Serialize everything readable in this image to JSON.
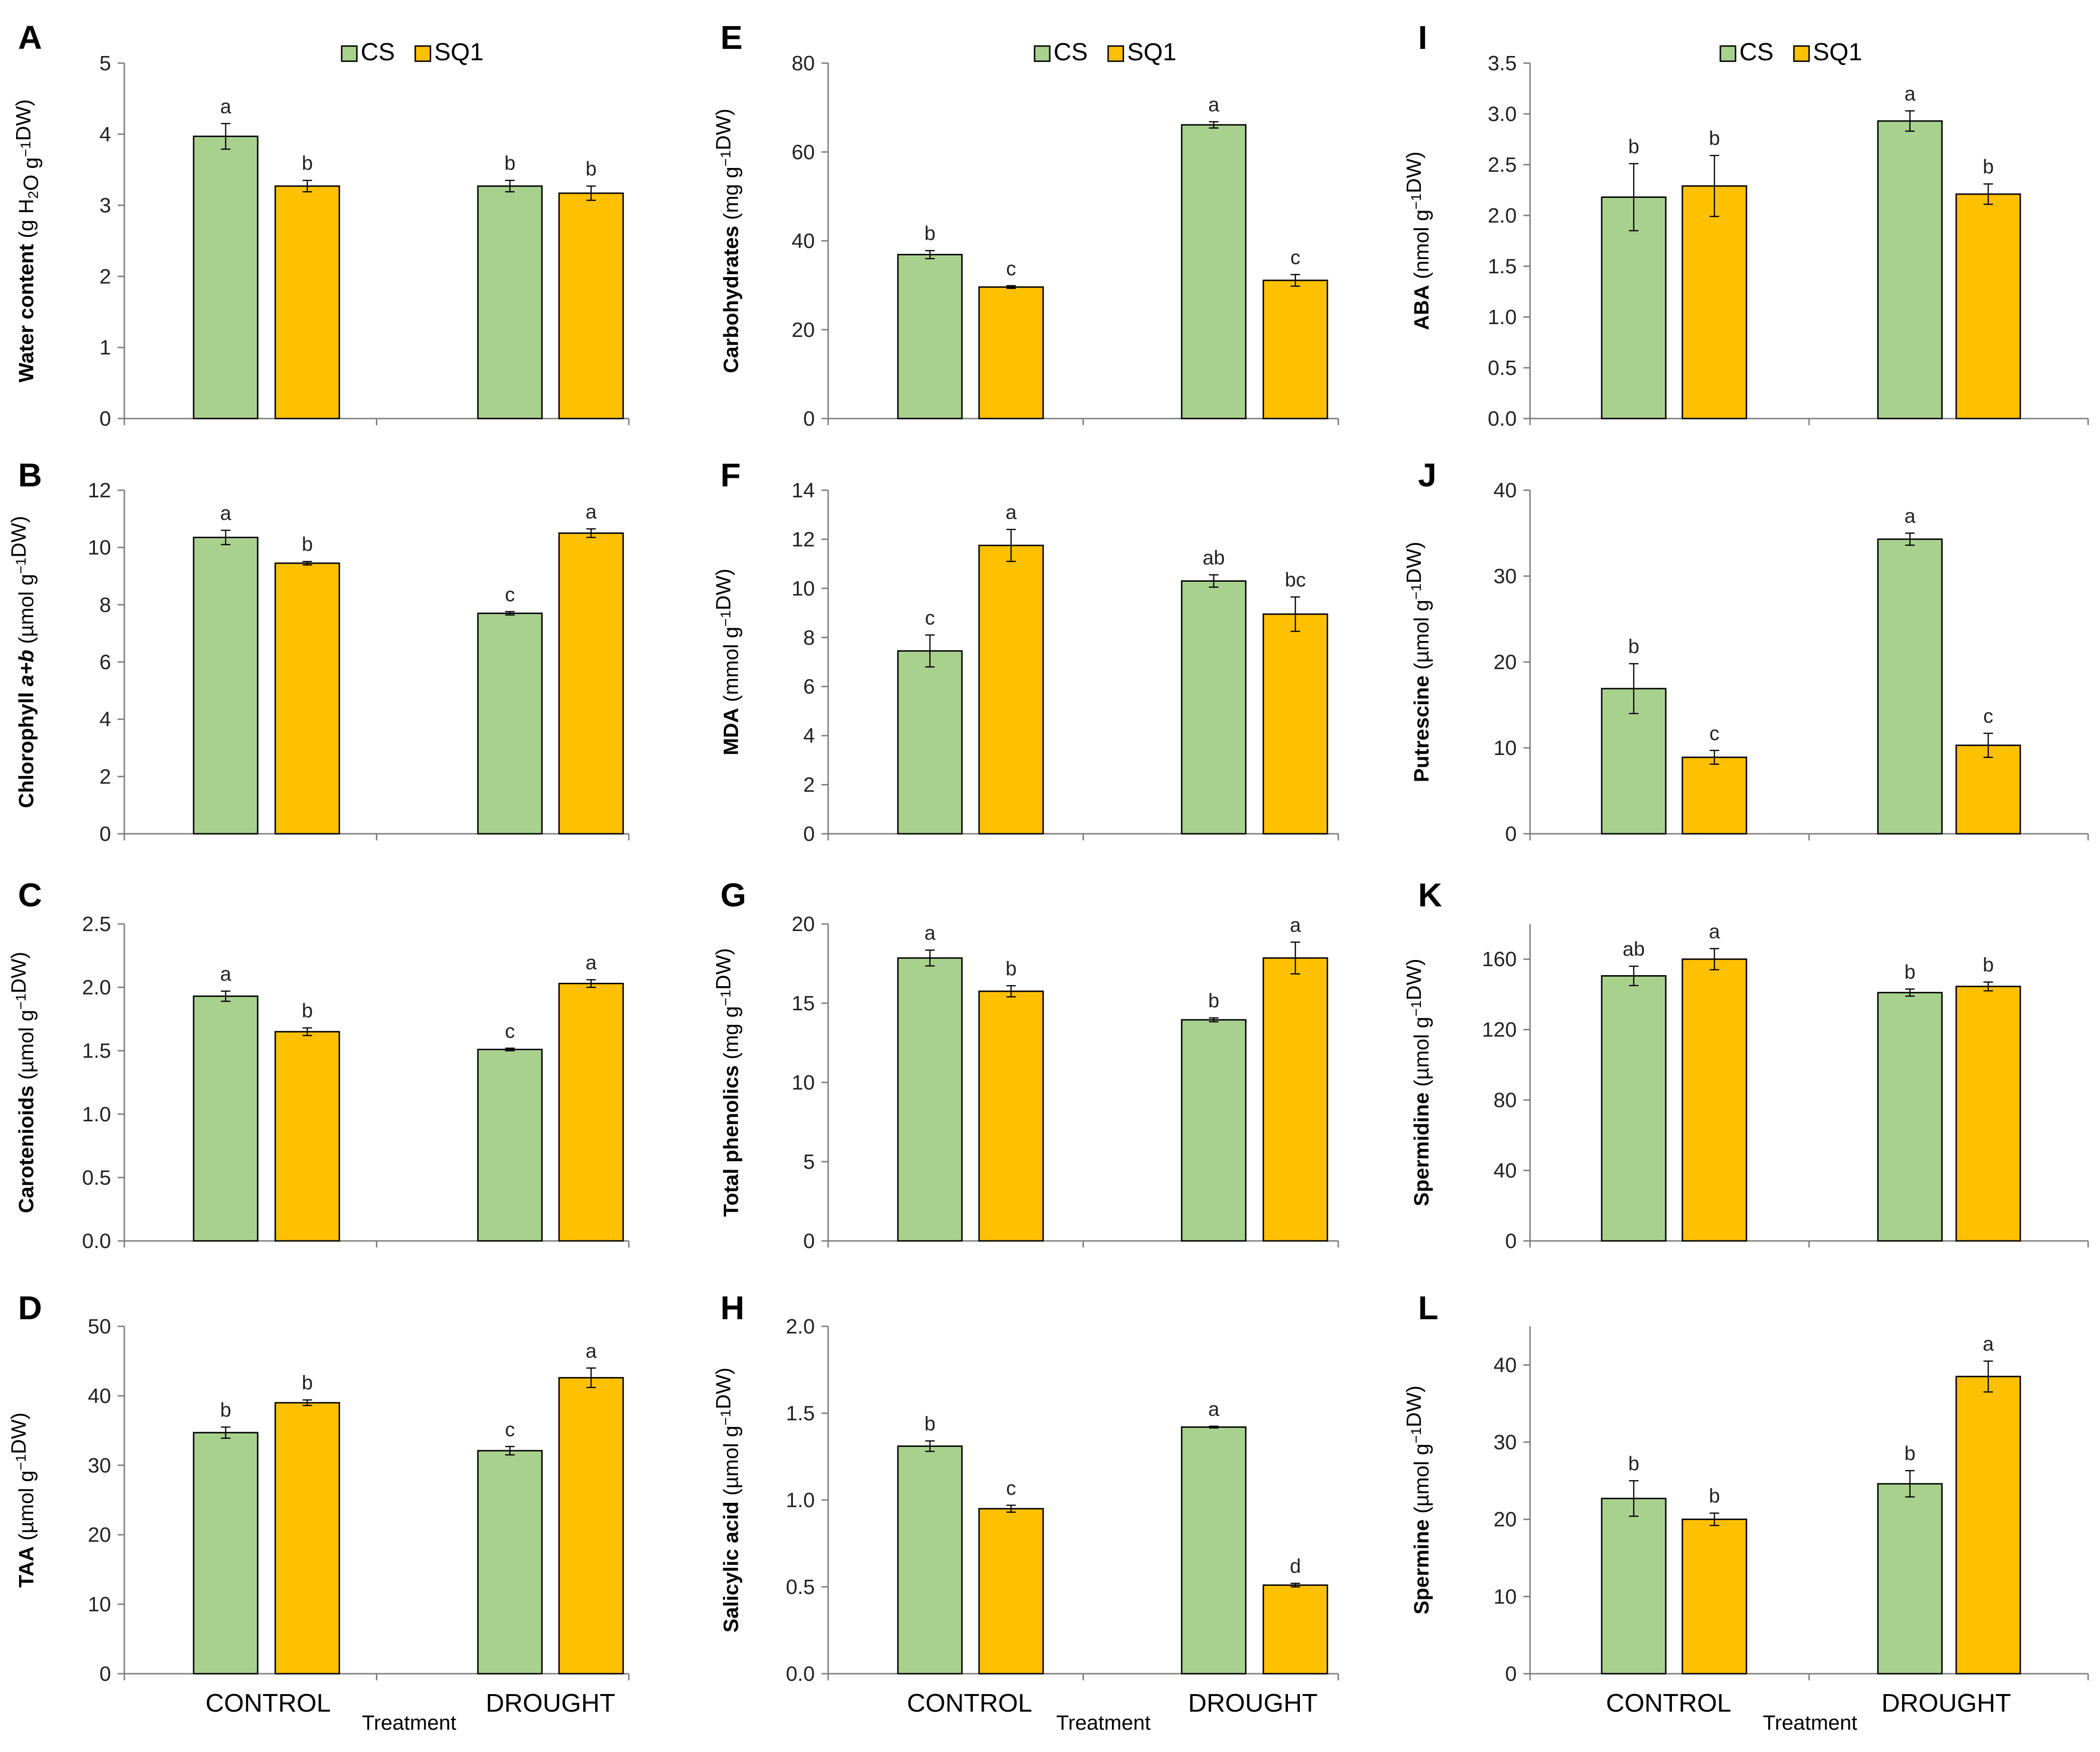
{
  "colors": {
    "CS": "#a9d18e",
    "SQ1": "#ffc000",
    "axis": "#7f7f7f",
    "outline": "#000000"
  },
  "legend": {
    "series": [
      "CS",
      "SQ1"
    ]
  },
  "chart_data": [
    {
      "type": "bar",
      "panel": "A",
      "categories": [
        "CONTROL",
        "DROUGHT"
      ],
      "ylabel_parts": [
        {
          "t": "Water content",
          "s": "b"
        },
        {
          "t": " (g H"
        },
        {
          "t": "2",
          "s": "sub"
        },
        {
          "t": "O g"
        },
        {
          "t": "−1",
          "s": "sup"
        },
        {
          "t": "DW)"
        }
      ],
      "ylim": [
        0,
        5
      ],
      "yticks": [
        "0",
        "1",
        "2",
        "3",
        "4",
        "5"
      ],
      "show_legend": true,
      "series": [
        {
          "name": "CS",
          "values": [
            3.97,
            3.27
          ],
          "errors": [
            0.18,
            0.08
          ],
          "letters": [
            "a",
            "b"
          ]
        },
        {
          "name": "SQ1",
          "values": [
            3.27,
            3.17
          ],
          "errors": [
            0.08,
            0.1
          ],
          "letters": [
            "b",
            "b"
          ]
        }
      ]
    },
    {
      "type": "bar",
      "panel": "B",
      "categories": [
        "CONTROL",
        "DROUGHT"
      ],
      "ylabel_parts": [
        {
          "t": "Chlorophyll ",
          "s": "b"
        },
        {
          "t": "a+b",
          "s": "bi"
        },
        {
          "t": "  (µmol g"
        },
        {
          "t": "−1",
          "s": "sup"
        },
        {
          "t": "DW)"
        }
      ],
      "ylim": [
        0,
        12
      ],
      "yticks": [
        "0",
        "2",
        "4",
        "6",
        "8",
        "10",
        "12"
      ],
      "series": [
        {
          "name": "CS",
          "values": [
            10.35,
            7.7
          ],
          "errors": [
            0.25,
            0.06
          ],
          "letters": [
            "a",
            "c"
          ]
        },
        {
          "name": "SQ1",
          "values": [
            9.45,
            10.5
          ],
          "errors": [
            0.06,
            0.15
          ],
          "letters": [
            "b",
            "a"
          ]
        }
      ]
    },
    {
      "type": "bar",
      "panel": "C",
      "categories": [
        "CONTROL",
        "DROUGHT"
      ],
      "ylabel_parts": [
        {
          "t": "Carotenioids",
          "s": "b"
        },
        {
          "t": " (µmol g"
        },
        {
          "t": "−1",
          "s": "sup"
        },
        {
          "t": "DW)"
        }
      ],
      "ylim": [
        0,
        2.5
      ],
      "yticks": [
        "0.0",
        "0.5",
        "1.0",
        "1.5",
        "2.0",
        "2.5"
      ],
      "series": [
        {
          "name": "CS",
          "values": [
            1.93,
            1.51
          ],
          "errors": [
            0.04,
            0.01
          ],
          "letters": [
            "a",
            "c"
          ]
        },
        {
          "name": "SQ1",
          "values": [
            1.65,
            2.03
          ],
          "errors": [
            0.03,
            0.03
          ],
          "letters": [
            "b",
            "a"
          ]
        }
      ]
    },
    {
      "type": "bar",
      "panel": "D",
      "categories": [
        "CONTROL",
        "DROUGHT"
      ],
      "ylabel_parts": [
        {
          "t": "TAA",
          "s": "b"
        },
        {
          "t": " (µmol g"
        },
        {
          "t": "−1",
          "s": "sup"
        },
        {
          "t": "DW)"
        }
      ],
      "ylim": [
        0,
        50
      ],
      "yticks": [
        "0",
        "10",
        "20",
        "30",
        "40",
        "50"
      ],
      "xlabel": "Treatment",
      "series": [
        {
          "name": "CS",
          "values": [
            34.7,
            32.1
          ],
          "errors": [
            0.8,
            0.6
          ],
          "letters": [
            "b",
            "c"
          ]
        },
        {
          "name": "SQ1",
          "values": [
            39.0,
            42.6
          ],
          "errors": [
            0.4,
            1.4
          ],
          "letters": [
            "b",
            "a"
          ]
        }
      ]
    },
    {
      "type": "bar",
      "panel": "E",
      "categories": [
        "CONTROL",
        "DROUGHT"
      ],
      "ylabel_parts": [
        {
          "t": "Carbohydrates",
          "s": "b"
        },
        {
          "t": " (mg g"
        },
        {
          "t": "−1",
          "s": "sup"
        },
        {
          "t": "DW)"
        }
      ],
      "ylim": [
        0,
        80
      ],
      "yticks": [
        "0",
        "20",
        "40",
        "60",
        "80"
      ],
      "show_legend": true,
      "series": [
        {
          "name": "CS",
          "values": [
            36.9,
            66.1
          ],
          "errors": [
            0.9,
            0.7
          ],
          "letters": [
            "b",
            "a"
          ]
        },
        {
          "name": "SQ1",
          "values": [
            29.6,
            31.1
          ],
          "errors": [
            0.3,
            1.3
          ],
          "letters": [
            "c",
            "c"
          ]
        }
      ]
    },
    {
      "type": "bar",
      "panel": "F",
      "categories": [
        "CONTROL",
        "DROUGHT"
      ],
      "ylabel_parts": [
        {
          "t": "MDA",
          "s": "b"
        },
        {
          "t": " (mmol g"
        },
        {
          "t": "−1",
          "s": "sup"
        },
        {
          "t": "DW)"
        }
      ],
      "ylim": [
        0,
        14
      ],
      "yticks": [
        "0",
        "2",
        "4",
        "6",
        "8",
        "10",
        "12",
        "14"
      ],
      "series": [
        {
          "name": "CS",
          "values": [
            7.45,
            10.3
          ],
          "errors": [
            0.65,
            0.25
          ],
          "letters": [
            "c",
            "ab"
          ]
        },
        {
          "name": "SQ1",
          "values": [
            11.75,
            8.95
          ],
          "errors": [
            0.65,
            0.7
          ],
          "letters": [
            "a",
            "bc"
          ]
        }
      ]
    },
    {
      "type": "bar",
      "panel": "G",
      "categories": [
        "CONTROL",
        "DROUGHT"
      ],
      "ylabel_parts": [
        {
          "t": "Total phenolics",
          "s": "b"
        },
        {
          "t": " (mg g"
        },
        {
          "t": "−1",
          "s": "sup"
        },
        {
          "t": "DW)"
        }
      ],
      "ylim": [
        0,
        20
      ],
      "yticks": [
        "0",
        "5",
        "10",
        "15",
        "20"
      ],
      "series": [
        {
          "name": "CS",
          "values": [
            17.85,
            13.95
          ],
          "errors": [
            0.5,
            0.12
          ],
          "letters": [
            "a",
            "b"
          ]
        },
        {
          "name": "SQ1",
          "values": [
            15.75,
            17.85
          ],
          "errors": [
            0.35,
            1.0
          ],
          "letters": [
            "b",
            "a"
          ]
        }
      ]
    },
    {
      "type": "bar",
      "panel": "H",
      "categories": [
        "CONTROL",
        "DROUGHT"
      ],
      "ylabel_parts": [
        {
          "t": "Salicylic acid",
          "s": "b"
        },
        {
          "t": " (µmol g"
        },
        {
          "t": "−1",
          "s": "sup"
        },
        {
          "t": "DW)"
        }
      ],
      "ylim": [
        0,
        2.0
      ],
      "yticks": [
        "0.0",
        "0.5",
        "1.0",
        "1.5",
        "2.0"
      ],
      "xlabel": "Treatment",
      "series": [
        {
          "name": "CS",
          "values": [
            1.31,
            1.42
          ],
          "errors": [
            0.03,
            0.005
          ],
          "letters": [
            "b",
            "a"
          ]
        },
        {
          "name": "SQ1",
          "values": [
            0.95,
            0.51
          ],
          "errors": [
            0.02,
            0.01
          ],
          "letters": [
            "c",
            "d"
          ]
        }
      ]
    },
    {
      "type": "bar",
      "panel": "I",
      "categories": [
        "CONTROL",
        "DROUGHT"
      ],
      "ylabel_parts": [
        {
          "t": "ABA",
          "s": "b"
        },
        {
          "t": " (nmol g"
        },
        {
          "t": "−1",
          "s": "sup"
        },
        {
          "t": "DW)"
        }
      ],
      "ylim": [
        0,
        3.5
      ],
      "yticks": [
        "0.0",
        "0.5",
        "1.0",
        "1.5",
        "2.0",
        "2.5",
        "3.0",
        "3.5"
      ],
      "show_legend": true,
      "series": [
        {
          "name": "CS",
          "values": [
            2.18,
            2.93
          ],
          "errors": [
            0.33,
            0.1
          ],
          "letters": [
            "b",
            "a"
          ]
        },
        {
          "name": "SQ1",
          "values": [
            2.29,
            2.21
          ],
          "errors": [
            0.3,
            0.1
          ],
          "letters": [
            "b",
            "b"
          ]
        }
      ]
    },
    {
      "type": "bar",
      "panel": "J",
      "categories": [
        "CONTROL",
        "DROUGHT"
      ],
      "ylabel_parts": [
        {
          "t": "Putrescine",
          "s": "b"
        },
        {
          "t": " (µmol g"
        },
        {
          "t": "−1",
          "s": "sup"
        },
        {
          "t": "DW)"
        }
      ],
      "ylim": [
        0,
        40
      ],
      "yticks": [
        "0",
        "10",
        "20",
        "30",
        "40"
      ],
      "series": [
        {
          "name": "CS",
          "values": [
            16.9,
            34.3
          ],
          "errors": [
            2.9,
            0.7
          ],
          "letters": [
            "b",
            "a"
          ]
        },
        {
          "name": "SQ1",
          "values": [
            8.9,
            10.3
          ],
          "errors": [
            0.8,
            1.4
          ],
          "letters": [
            "c",
            "c"
          ]
        }
      ]
    },
    {
      "type": "bar",
      "panel": "K",
      "categories": [
        "CONTROL",
        "DROUGHT"
      ],
      "ylabel_parts": [
        {
          "t": "Spermidine",
          "s": "b"
        },
        {
          "t": " (µmol g"
        },
        {
          "t": "−1",
          "s": "sup"
        },
        {
          "t": "DW)"
        }
      ],
      "ylim": [
        0,
        180
      ],
      "yticks": [
        "0",
        "40",
        "80",
        "120",
        "160"
      ],
      "series": [
        {
          "name": "CS",
          "values": [
            150.5,
            141.0
          ],
          "errors": [
            5.5,
            2.0
          ],
          "letters": [
            "ab",
            "b"
          ]
        },
        {
          "name": "SQ1",
          "values": [
            160.0,
            144.5
          ],
          "errors": [
            6.0,
            2.5
          ],
          "letters": [
            "a",
            "b"
          ]
        }
      ]
    },
    {
      "type": "bar",
      "panel": "L",
      "categories": [
        "CONTROL",
        "DROUGHT"
      ],
      "ylabel_parts": [
        {
          "t": "Spermine",
          "s": "b"
        },
        {
          "t": " (µmol g"
        },
        {
          "t": "−1",
          "s": "sup"
        },
        {
          "t": "DW)"
        }
      ],
      "ylim": [
        0,
        45
      ],
      "yticks": [
        "0",
        "10",
        "20",
        "30",
        "40"
      ],
      "xlabel": "Treatment",
      "series": [
        {
          "name": "CS",
          "values": [
            22.7,
            24.6
          ],
          "errors": [
            2.3,
            1.7
          ],
          "letters": [
            "b",
            "b"
          ]
        },
        {
          "name": "SQ1",
          "values": [
            20.0,
            38.5
          ],
          "errors": [
            0.8,
            2.0
          ],
          "letters": [
            "b",
            "a"
          ]
        }
      ]
    }
  ]
}
